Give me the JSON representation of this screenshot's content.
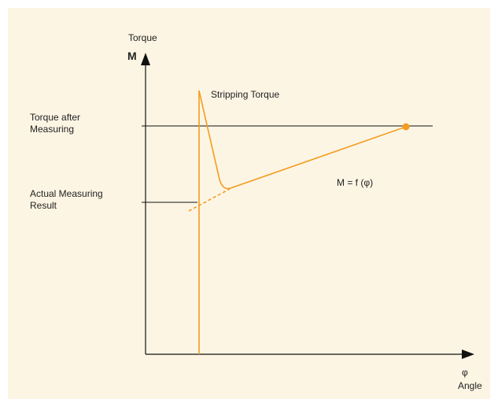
{
  "y_axis": {
    "title": "Torque",
    "symbol": "M"
  },
  "x_axis": {
    "symbol": "φ",
    "title": "Angle"
  },
  "labels": {
    "stripping_torque": "Stripping Torque",
    "torque_after_measuring": [
      "Torque after",
      "Measuring"
    ],
    "actual_measuring_result": [
      "Actual Measuring",
      "Result"
    ],
    "function": "M = f (φ)"
  }
}
